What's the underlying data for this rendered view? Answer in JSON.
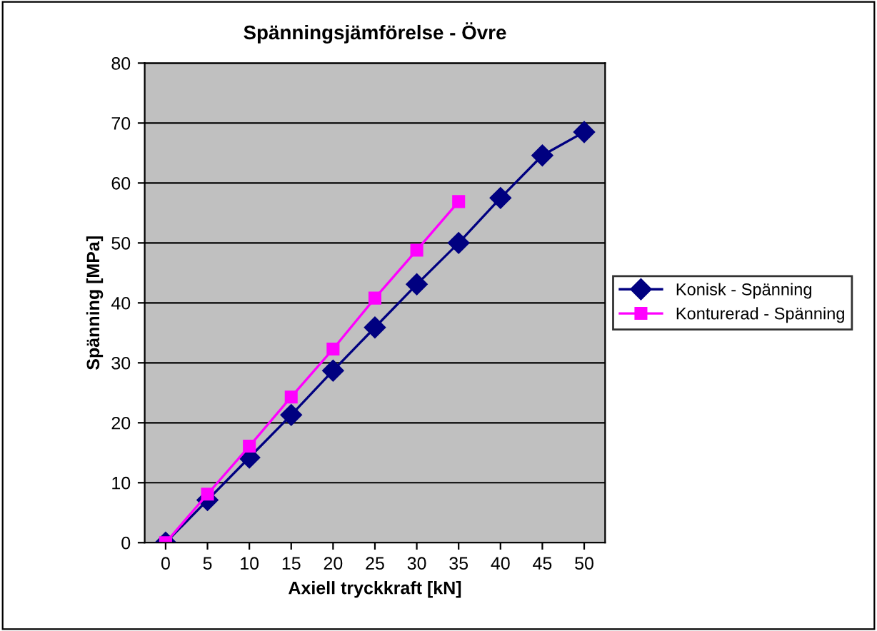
{
  "chart_data": {
    "type": "line",
    "title": "Spänningsjämförelse - Övre",
    "xlabel": "Axiell tryckkraft [kN]",
    "ylabel": "Spänning [MPa]",
    "categories": [
      "0",
      "5",
      "10",
      "15",
      "20",
      "25",
      "30",
      "35",
      "40",
      "45",
      "50"
    ],
    "series": [
      {
        "name": "Konisk - Spänning",
        "color": "#000080",
        "marker": "diamond",
        "values": [
          0,
          7.1,
          14.2,
          21.3,
          28.7,
          35.9,
          43.1,
          50,
          57.5,
          64.6,
          68.5
        ]
      },
      {
        "name": "Konturerad - Spänning",
        "color": "#ff00ff",
        "marker": "square",
        "values": [
          0,
          8.1,
          16.1,
          24.3,
          32.3,
          40.8,
          48.8,
          56.9,
          null,
          null,
          null
        ]
      }
    ],
    "ylim": [
      0,
      80
    ],
    "yticks": [
      0,
      10,
      20,
      30,
      40,
      50,
      60,
      70,
      80
    ],
    "grid": "y",
    "legend": "right",
    "line_style": "solid"
  }
}
